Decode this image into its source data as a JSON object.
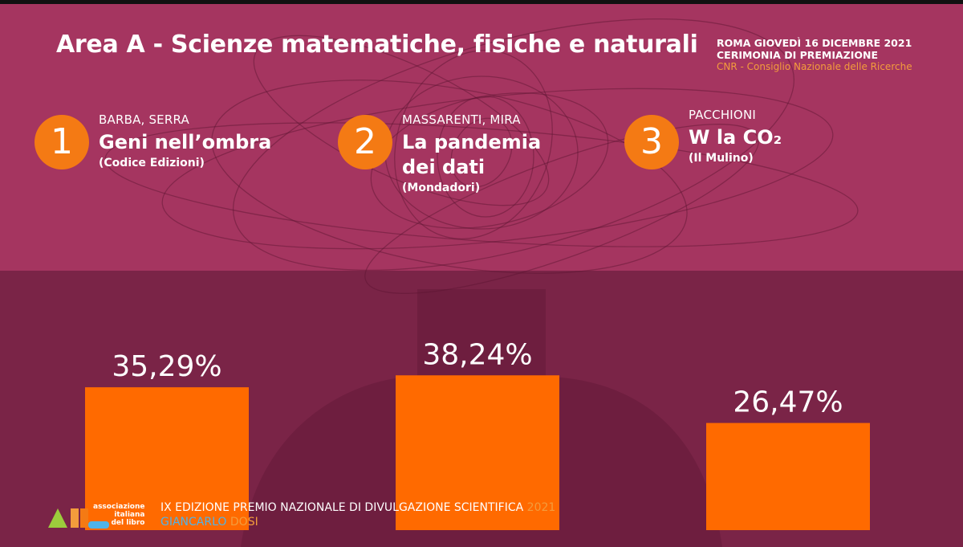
{
  "header": {
    "title": "Area A - Scienze matematiche, fisiche e naturali",
    "event_line1": "ROMA GIOVEDÌ 16 DICEMBRE 2021",
    "event_line2": "CERIMONIA DI PREMIAZIONE",
    "organizer": "CNR - Consiglio Nazionale delle Ricerche"
  },
  "entries": [
    {
      "rank": "1",
      "authors": "BARBA, SERRA",
      "title_line1": "Geni nell’ombra",
      "title_line2": "",
      "publisher": "(Codice Edizioni)"
    },
    {
      "rank": "2",
      "authors": "MASSARENTI, MIRA",
      "title_line1": "La pandemia",
      "title_line2": "dei dati",
      "publisher": "(Mondadori)"
    },
    {
      "rank": "3",
      "authors": "PACCHIONI",
      "title_line1": "W la CO₂",
      "title_line2": "",
      "publisher": "(Il Mulino)"
    }
  ],
  "chart_data": {
    "type": "bar",
    "categories": [
      "Geni nell’ombra",
      "La pandemia dei dati",
      "W la CO₂"
    ],
    "values": [
      35.29,
      38.24,
      26.47
    ],
    "value_labels": [
      "35,29%",
      "38,24%",
      "26,47%"
    ],
    "ylim": [
      0,
      100
    ],
    "bar_color": "#ff6a00",
    "label_color": "#ffffff"
  },
  "footer": {
    "line1": "IX EDIZIONE PREMIO NAZIONALE DI DIVULGAZIONE SCIENTIFICA",
    "year": "2021",
    "name_first": "GIANCARLO",
    "name_last": "DOSI",
    "logo_line1": "associazione",
    "logo_line2": "italiana",
    "logo_line3": "del libro"
  },
  "colors": {
    "background_upper": "#a53560",
    "background_lower": "#7a2447",
    "accent_orange": "#f47a14",
    "accent_blue": "#4fb3e8"
  }
}
